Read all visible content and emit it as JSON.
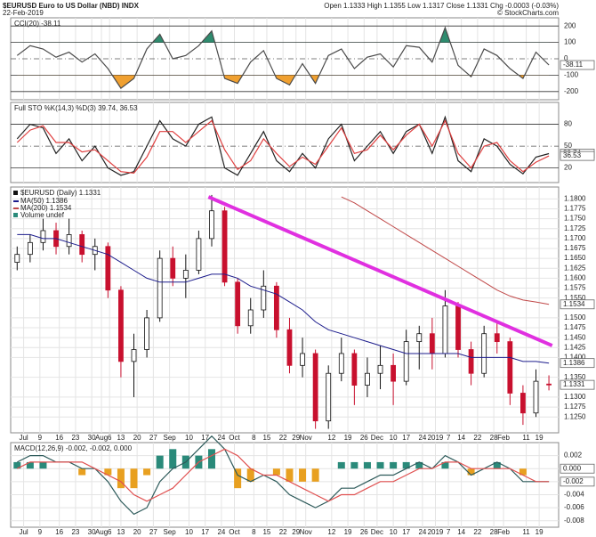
{
  "header": {
    "title": "$EURUSD Euro to US Dollar (NBD) INDX",
    "date": "22-Feb-2019",
    "quote": "Open 1.1333 High 1.1355 Low 1.1317 Close 1.1331 Chg -0.0003 (-0.03%)",
    "credit": "© StockCharts.com"
  },
  "chart_data": [
    {
      "type": "cci",
      "legend": "CCI(20) -38.11",
      "color": "#4a4a4a",
      "fill_above": "#2e8b6e",
      "fill_below": "#f0a030",
      "values": [
        20,
        80,
        60,
        10,
        40,
        -20,
        30,
        -60,
        -180,
        -120,
        60,
        150,
        0,
        20,
        80,
        170,
        -120,
        -150,
        -20,
        50,
        -120,
        -160,
        -30,
        -150,
        20,
        60,
        -60,
        10,
        30,
        -50,
        80,
        70,
        -20,
        190,
        -40,
        -110,
        60,
        20,
        -60,
        -120,
        40,
        -38.11
      ],
      "ylim": [
        -250,
        250
      ],
      "yticks": [
        200,
        100,
        0,
        -100,
        -200
      ],
      "markers": [
        -38.11
      ],
      "grid": true
    },
    {
      "type": "line",
      "legend": "Full STO %K(14,3) %D(3) 39.74, 36.53",
      "series": [
        {
          "name": "%K",
          "color": "#222222",
          "values": [
            60,
            80,
            75,
            40,
            60,
            30,
            50,
            20,
            10,
            15,
            50,
            85,
            60,
            50,
            80,
            90,
            20,
            10,
            40,
            70,
            30,
            15,
            40,
            20,
            60,
            80,
            30,
            50,
            70,
            40,
            70,
            80,
            40,
            90,
            30,
            15,
            60,
            50,
            25,
            12,
            35,
            39.74
          ]
        },
        {
          "name": "%D",
          "color": "#e04040",
          "values": [
            55,
            72,
            78,
            55,
            55,
            42,
            45,
            30,
            15,
            13,
            35,
            70,
            70,
            55,
            70,
            85,
            45,
            18,
            30,
            60,
            40,
            22,
            35,
            25,
            50,
            75,
            40,
            45,
            65,
            45,
            65,
            80,
            50,
            85,
            40,
            20,
            50,
            55,
            30,
            15,
            28,
            36.53
          ]
        }
      ],
      "ylim": [
        0,
        110
      ],
      "yticks": [
        80,
        50,
        20
      ],
      "markers": [
        39.74,
        36.53
      ],
      "grid": true
    },
    {
      "type": "candlestick",
      "title": "$EURUSD (Daily) 1.1331",
      "volume_label": "Volume undef",
      "volume_color": "#2a8a7a",
      "up_color": "#111111",
      "down_color": "#c8102e",
      "x": [
        0,
        4,
        8,
        12,
        16,
        20,
        24,
        28,
        32,
        36,
        40,
        44,
        48,
        52,
        56,
        60,
        64,
        68,
        72,
        76,
        80,
        84,
        88,
        92,
        96,
        100,
        104,
        108,
        112,
        116,
        120,
        124,
        128,
        132,
        136,
        140,
        144,
        148,
        152,
        156,
        160,
        164
      ],
      "xlim": [
        -2,
        167
      ],
      "open": [
        1.164,
        1.166,
        1.169,
        1.172,
        1.168,
        1.171,
        1.166,
        1.168,
        1.157,
        1.139,
        1.142,
        1.15,
        1.165,
        1.16,
        1.162,
        1.17,
        1.177,
        1.159,
        1.148,
        1.152,
        1.158,
        1.147,
        1.138,
        1.141,
        1.124,
        1.136,
        1.141,
        1.133,
        1.136,
        1.138,
        1.134,
        1.144,
        1.146,
        1.141,
        1.153,
        1.142,
        1.136,
        1.146,
        1.144,
        1.131,
        1.126,
        1.1333
      ],
      "high": [
        1.168,
        1.171,
        1.175,
        1.174,
        1.175,
        1.172,
        1.17,
        1.169,
        1.158,
        1.146,
        1.152,
        1.167,
        1.168,
        1.166,
        1.172,
        1.181,
        1.178,
        1.16,
        1.155,
        1.162,
        1.159,
        1.15,
        1.145,
        1.142,
        1.138,
        1.145,
        1.142,
        1.14,
        1.143,
        1.141,
        1.147,
        1.148,
        1.15,
        1.157,
        1.154,
        1.144,
        1.148,
        1.149,
        1.145,
        1.133,
        1.137,
        1.1355
      ],
      "low": [
        1.162,
        1.164,
        1.167,
        1.166,
        1.166,
        1.164,
        1.162,
        1.155,
        1.135,
        1.13,
        1.14,
        1.149,
        1.158,
        1.155,
        1.161,
        1.168,
        1.158,
        1.146,
        1.146,
        1.15,
        1.145,
        1.136,
        1.135,
        1.122,
        1.122,
        1.134,
        1.128,
        1.13,
        1.132,
        1.128,
        1.133,
        1.137,
        1.137,
        1.14,
        1.14,
        1.133,
        1.135,
        1.141,
        1.128,
        1.123,
        1.125,
        1.1317
      ],
      "close": [
        1.166,
        1.169,
        1.172,
        1.168,
        1.171,
        1.166,
        1.168,
        1.157,
        1.139,
        1.142,
        1.15,
        1.165,
        1.16,
        1.162,
        1.17,
        1.177,
        1.159,
        1.148,
        1.152,
        1.158,
        1.147,
        1.138,
        1.141,
        1.124,
        1.136,
        1.141,
        1.133,
        1.136,
        1.138,
        1.134,
        1.144,
        1.146,
        1.141,
        1.153,
        1.142,
        1.136,
        1.146,
        1.144,
        1.131,
        1.126,
        1.134,
        1.1331
      ],
      "series": [
        {
          "name": "MA(50) 1.1386",
          "color": "#1c1c8c",
          "values": [
            1.171,
            1.171,
            1.17,
            1.17,
            1.169,
            1.168,
            1.167,
            1.166,
            1.164,
            1.162,
            1.16,
            1.159,
            1.159,
            1.159,
            1.16,
            1.161,
            1.161,
            1.16,
            1.158,
            1.157,
            1.156,
            1.154,
            1.152,
            1.149,
            1.147,
            1.146,
            1.145,
            1.144,
            1.143,
            1.142,
            1.141,
            1.141,
            1.141,
            1.141,
            1.141,
            1.14,
            1.14,
            1.14,
            1.14,
            1.139,
            1.139,
            1.1386
          ]
        },
        {
          "name": "MA(200) 1.1534",
          "color": "#c04848",
          "values": [
            null,
            null,
            null,
            null,
            null,
            null,
            null,
            null,
            null,
            null,
            null,
            null,
            null,
            null,
            null,
            null,
            null,
            null,
            null,
            null,
            null,
            null,
            null,
            null,
            null,
            1.1805,
            1.179,
            1.177,
            1.175,
            1.173,
            1.171,
            1.169,
            1.167,
            1.165,
            1.163,
            1.161,
            1.159,
            1.157,
            1.1555,
            1.1545,
            1.154,
            1.1534
          ]
        }
      ],
      "trendline": {
        "color": "#e030e0",
        "x": [
          59,
          165
        ],
        "y": [
          1.1805,
          1.143
        ]
      },
      "ylim": [
        1.121,
        1.183
      ],
      "yticks": [
        {
          "value": 1.18,
          "label": "1.1800"
        },
        {
          "value": 1.1775,
          "label": "1.1775"
        },
        {
          "value": 1.175,
          "label": "1.1750"
        },
        {
          "value": 1.1725,
          "label": "1.1725"
        },
        {
          "value": 1.17,
          "label": "1.1700"
        },
        {
          "value": 1.1675,
          "label": "1.1675"
        },
        {
          "value": 1.165,
          "label": "1.1650"
        },
        {
          "value": 1.1625,
          "label": "1.1625"
        },
        {
          "value": 1.16,
          "label": "1.1600"
        },
        {
          "value": 1.1575,
          "label": "1.1575"
        },
        {
          "value": 1.155,
          "label": "1.1550"
        },
        {
          "value": 1.15,
          "label": "1.1500"
        },
        {
          "value": 1.1475,
          "label": "1.1475"
        },
        {
          "value": 1.145,
          "label": "1.1450"
        },
        {
          "value": 1.1425,
          "label": "1.1425"
        },
        {
          "value": 1.14,
          "label": "1.1400"
        },
        {
          "value": 1.135,
          "label": "1.1350"
        },
        {
          "value": 1.13,
          "label": "1.1300"
        },
        {
          "value": 1.1275,
          "label": "1.1275"
        },
        {
          "value": 1.125,
          "label": "1.1250"
        }
      ],
      "markers": [
        1.1534,
        1.1386,
        1.1331
      ],
      "xticks": [
        {
          "value": 2,
          "label": "Jul"
        },
        {
          "value": 7,
          "label": "9"
        },
        {
          "value": 13,
          "label": "16"
        },
        {
          "value": 18,
          "label": "23"
        },
        {
          "value": 23,
          "label": "30"
        },
        {
          "value": 26,
          "label": "Aug"
        },
        {
          "value": 28.5,
          "label": "6"
        },
        {
          "value": 32,
          "label": "13"
        },
        {
          "value": 37,
          "label": "20"
        },
        {
          "value": 42,
          "label": "27"
        },
        {
          "value": 47,
          "label": "Sep"
        },
        {
          "value": 53,
          "label": "10"
        },
        {
          "value": 58,
          "label": "17"
        },
        {
          "value": 63,
          "label": "24"
        },
        {
          "value": 67,
          "label": "Oct"
        },
        {
          "value": 73,
          "label": "8"
        },
        {
          "value": 77,
          "label": "15"
        },
        {
          "value": 82,
          "label": "22"
        },
        {
          "value": 86,
          "label": "29"
        },
        {
          "value": 89,
          "label": "Nov"
        },
        {
          "value": 97,
          "label": "12"
        },
        {
          "value": 102,
          "label": "19"
        },
        {
          "value": 107,
          "label": "26"
        },
        {
          "value": 111,
          "label": "Dec"
        },
        {
          "value": 116,
          "label": "10"
        },
        {
          "value": 120,
          "label": "17"
        },
        {
          "value": 125,
          "label": "24"
        },
        {
          "value": 129,
          "label": "2019"
        },
        {
          "value": 133,
          "label": "7"
        },
        {
          "value": 137,
          "label": "14"
        },
        {
          "value": 142,
          "label": "22"
        },
        {
          "value": 147,
          "label": "28"
        },
        {
          "value": 150,
          "label": "Feb"
        },
        {
          "value": 157,
          "label": "11"
        },
        {
          "value": 161,
          "label": "19"
        }
      ],
      "grid": true
    },
    {
      "type": "macd",
      "legend": "MACD(12,26,9) -0.002, -0.002, 0.000",
      "series": [
        {
          "name": "MACD",
          "color": "#2d5a5a",
          "values": [
            0.001,
            0.002,
            0.002,
            0.001,
            0.001,
            0.0,
            0.0,
            -0.002,
            -0.005,
            -0.007,
            -0.006,
            -0.002,
            0.0,
            0.001,
            0.003,
            0.005,
            0.003,
            -0.001,
            -0.002,
            -0.001,
            -0.002,
            -0.004,
            -0.005,
            -0.006,
            -0.005,
            -0.003,
            -0.003,
            -0.002,
            -0.001,
            -0.001,
            0.0,
            0.001,
            0.0,
            0.002,
            0.001,
            -0.001,
            0.0,
            0.001,
            0.0,
            -0.002,
            -0.002,
            -0.002
          ]
        },
        {
          "name": "Signal",
          "color": "#e05050",
          "values": [
            0.0,
            0.001,
            0.001,
            0.001,
            0.001,
            0.001,
            0.0,
            -0.001,
            -0.002,
            -0.004,
            -0.005,
            -0.004,
            -0.003,
            -0.001,
            0.001,
            0.002,
            0.003,
            0.002,
            0.0,
            -0.001,
            -0.001,
            -0.002,
            -0.003,
            -0.004,
            -0.005,
            -0.004,
            -0.004,
            -0.003,
            -0.002,
            -0.002,
            -0.001,
            0.0,
            0.0,
            0.001,
            0.001,
            0.0,
            0.0,
            0.0,
            0.0,
            -0.001,
            -0.002,
            -0.002
          ]
        }
      ],
      "histogram": {
        "up_color": "#2a8a7a",
        "down_color": "#e8a020",
        "values": [
          0.001,
          0.001,
          0.001,
          0,
          0,
          -0.001,
          0,
          -0.001,
          -0.003,
          -0.003,
          -0.001,
          0.002,
          0.003,
          0.002,
          0.002,
          0.003,
          0,
          -0.003,
          -0.002,
          0,
          -0.001,
          -0.002,
          -0.002,
          -0.002,
          0,
          0.001,
          0.001,
          0.001,
          0.001,
          0.001,
          0.001,
          0.001,
          0,
          0.001,
          0,
          -0.001,
          0,
          0.001,
          0,
          -0.001,
          0,
          0
        ]
      },
      "ylim": [
        -0.009,
        0.004
      ],
      "yticks": [
        0.002,
        {
          "value": 0,
          "label": "0.000"
        },
        -0.002,
        -0.004,
        -0.006,
        -0.008
      ],
      "markers": [
        {
          "value": 0,
          "label": "0.000"
        },
        -0.002
      ],
      "xticks": [
        {
          "value": 2,
          "label": "Jul"
        },
        {
          "value": 7,
          "label": "9"
        },
        {
          "value": 13,
          "label": "16"
        },
        {
          "value": 18,
          "label": "23"
        },
        {
          "value": 23,
          "label": "30"
        },
        {
          "value": 26,
          "label": "Aug"
        },
        {
          "value": 28.5,
          "label": "6"
        },
        {
          "value": 32,
          "label": "13"
        },
        {
          "value": 37,
          "label": "20"
        },
        {
          "value": 42,
          "label": "27"
        },
        {
          "value": 47,
          "label": "Sep"
        },
        {
          "value": 53,
          "label": "10"
        },
        {
          "value": 58,
          "label": "17"
        },
        {
          "value": 63,
          "label": "24"
        },
        {
          "value": 67,
          "label": "Oct"
        },
        {
          "value": 73,
          "label": "8"
        },
        {
          "value": 77,
          "label": "15"
        },
        {
          "value": 82,
          "label": "22"
        },
        {
          "value": 86,
          "label": "29"
        },
        {
          "value": 89,
          "label": "Nov"
        },
        {
          "value": 97,
          "label": "12"
        },
        {
          "value": 102,
          "label": "19"
        },
        {
          "value": 107,
          "label": "26"
        },
        {
          "value": 111,
          "label": "Dec"
        },
        {
          "value": 116,
          "label": "10"
        },
        {
          "value": 120,
          "label": "17"
        },
        {
          "value": 125,
          "label": "24"
        },
        {
          "value": 129,
          "label": "2019"
        },
        {
          "value": 133,
          "label": "7"
        },
        {
          "value": 137,
          "label": "14"
        },
        {
          "value": 142,
          "label": "22"
        },
        {
          "value": 147,
          "label": "28"
        },
        {
          "value": 150,
          "label": "Feb"
        },
        {
          "value": 157,
          "label": "11"
        },
        {
          "value": 161,
          "label": "19"
        }
      ],
      "grid": true
    }
  ]
}
